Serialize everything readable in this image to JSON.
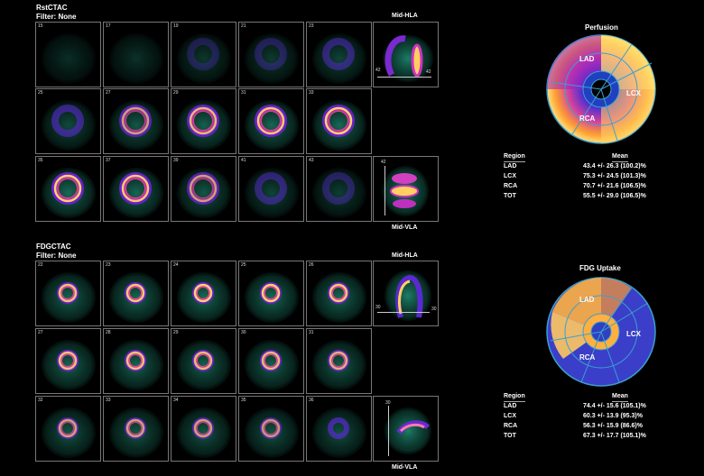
{
  "panels": [
    {
      "title": "RstCTAC",
      "filter": "Filter: None",
      "label_top": "Mid-HLA",
      "label_bottom": "Mid-VLA",
      "rows": [
        [
          "15",
          "17",
          "19",
          "21",
          "23"
        ],
        [
          "25",
          "27",
          "29",
          "31",
          "33"
        ],
        [
          "35",
          "37",
          "39",
          "41",
          "43"
        ]
      ],
      "hla_numbers": [
        "42",
        "42"
      ],
      "vla_numbers": [
        "42"
      ],
      "polar_title": "Perfusion",
      "regions": {
        "lad": "LAD",
        "lcx": "LCX",
        "rca": "RCA"
      },
      "table": {
        "header": {
          "region": "Region",
          "mean": "Mean"
        },
        "rows": [
          {
            "region": "LAD",
            "mean": "43.4 +/- 26.3 (100.2)%"
          },
          {
            "region": "LCX",
            "mean": "75.3 +/- 24.5 (101.3)%"
          },
          {
            "region": "RCA",
            "mean": "70.7 +/- 21.6 (106.5)%"
          },
          {
            "region": "TOT",
            "mean": "55.5 +/- 29.0 (106.5)%"
          }
        ]
      }
    },
    {
      "title": "FDGCTAC",
      "filter": "Filter: None",
      "label_top": "Mid-HLA",
      "label_bottom": "Mid-VLA",
      "rows": [
        [
          "22",
          "23",
          "24",
          "25",
          "26"
        ],
        [
          "27",
          "28",
          "29",
          "30",
          "31"
        ],
        [
          "32",
          "33",
          "34",
          "35",
          "36"
        ]
      ],
      "hla_numbers": [
        "30",
        "30"
      ],
      "vla_numbers": [
        "30"
      ],
      "polar_title": "FDG Uptake",
      "regions": {
        "lad": "LAD",
        "lcx": "LCX",
        "rca": "RCA"
      },
      "table": {
        "header": {
          "region": "Region",
          "mean": "Mean"
        },
        "rows": [
          {
            "region": "LAD",
            "mean": "74.4 +/- 15.6 (105.1)%"
          },
          {
            "region": "LCX",
            "mean": "60.3 +/- 13.9 (95.3)%"
          },
          {
            "region": "RCA",
            "mean": "56.3 +/- 15.9 (86.6)%"
          },
          {
            "region": "TOT",
            "mean": "67.3 +/- 17.7 (105.1)%"
          }
        ]
      }
    }
  ],
  "colors": {
    "background": "#000000",
    "hot": "#ffe070",
    "mid": "#d030d0",
    "low": "#6020c0",
    "tissue": "#1e7a66"
  }
}
